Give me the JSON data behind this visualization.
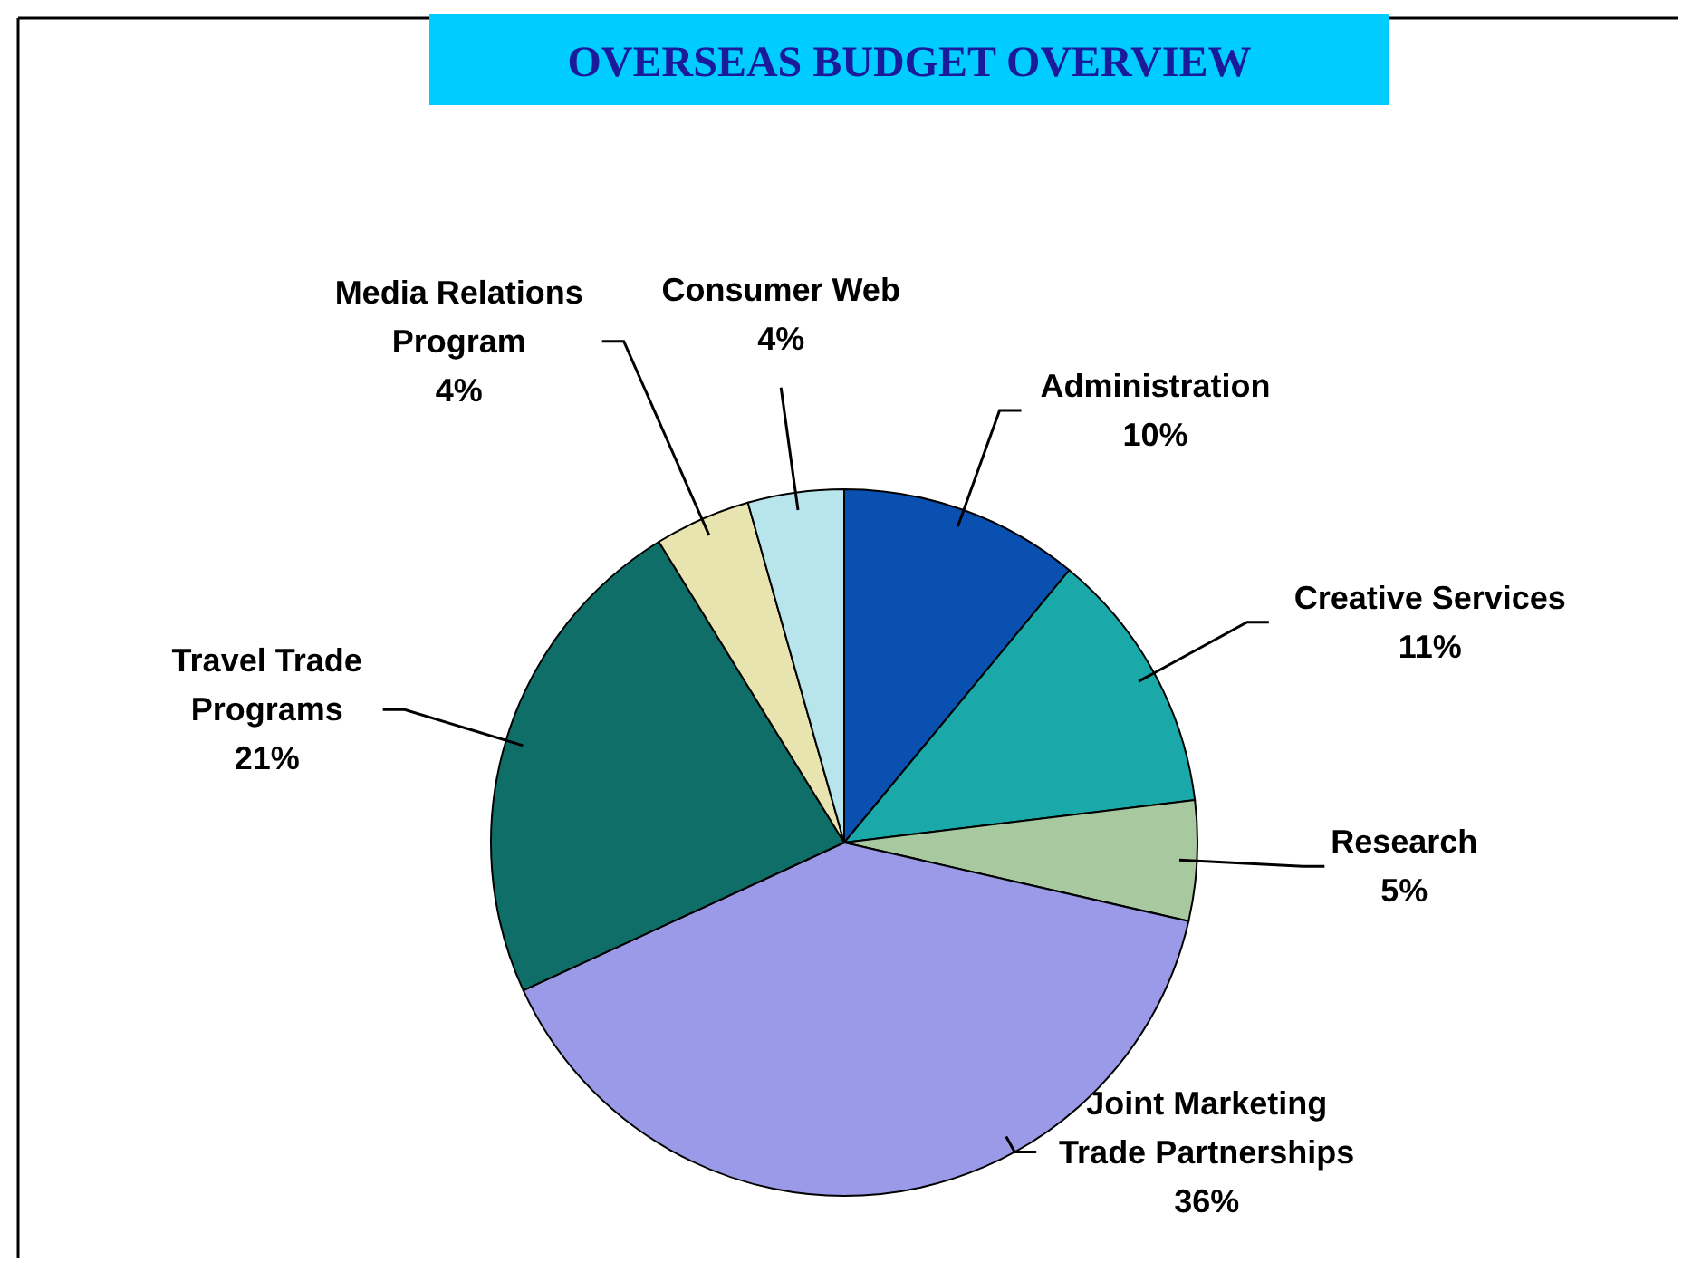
{
  "chart_data": {
    "type": "pie",
    "title": "OVERSEAS BUDGET OVERVIEW",
    "categories": [
      "Administration",
      "Creative Services",
      "Research",
      "Joint Marketing Trade Partnerships",
      "Travel Trade Programs",
      "Media Relations Program",
      "Consumer Web"
    ],
    "values": [
      10,
      11,
      5,
      36,
      21,
      4,
      4
    ],
    "value_labels": [
      "10%",
      "11%",
      "5%",
      "36%",
      "21%",
      "4%",
      "4%"
    ],
    "colors": [
      "#0a50b0",
      "#1aa8a8",
      "#a8c8a0",
      "#9a9ae8",
      "#106e68",
      "#e8e4b0",
      "#b8e4ec"
    ]
  }
}
